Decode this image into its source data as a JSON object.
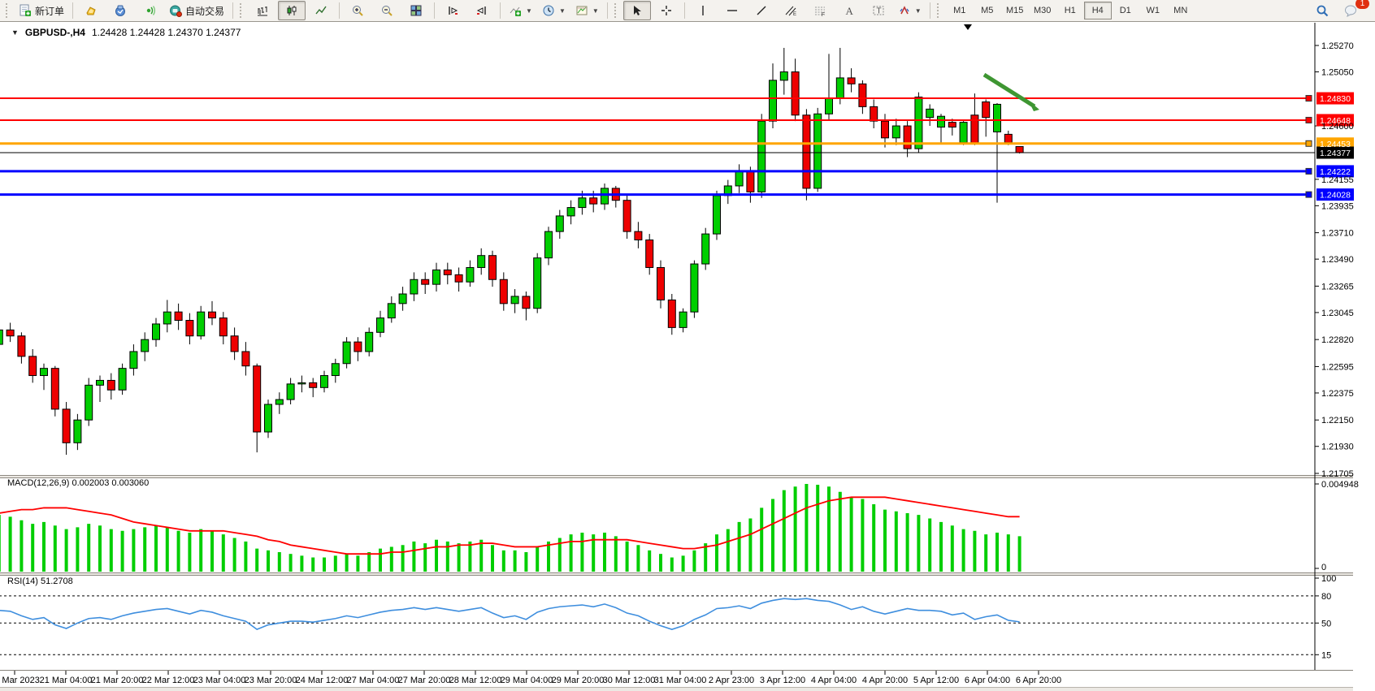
{
  "toolbar": {
    "new_order_label": "新订单",
    "autotrading_label": "自动交易",
    "timeframes": [
      "M1",
      "M5",
      "M15",
      "M30",
      "H1",
      "H4",
      "D1",
      "W1",
      "MN"
    ],
    "active_timeframe": "H4",
    "notification_count": "1"
  },
  "chart": {
    "symbol_period": "GBPUSD-,H4",
    "ohlc": "1.24428 1.24428 1.24370 1.24377",
    "dropdown_glyph": "▼"
  },
  "indicators": {
    "macd_label": "MACD(12,26,9) 0.002003 0.003060",
    "rsi_label": "RSI(14) 51.2708"
  },
  "axes": {
    "y_ticks": [
      "1.25270",
      "1.25050",
      "1.24600",
      "1.24155",
      "1.23935",
      "1.23710",
      "1.23490",
      "1.23265",
      "1.23045",
      "1.22820",
      "1.22595",
      "1.22375",
      "1.22150",
      "1.21930",
      "1.21705"
    ],
    "macd_ticks": [
      "0.004948",
      "0"
    ],
    "rsi_ticks": [
      "100",
      "80",
      "50",
      "15"
    ],
    "x_labels": [
      "20 Mar 2023",
      "21 Mar 04:00",
      "21 Mar 20:00",
      "22 Mar 12:00",
      "23 Mar 04:00",
      "23 Mar 20:00",
      "24 Mar 12:00",
      "27 Mar 04:00",
      "27 Mar 20:00",
      "28 Mar 12:00",
      "29 Mar 04:00",
      "29 Mar 20:00",
      "30 Mar 12:00",
      "31 Mar 04:00",
      "2 Apr 23:00",
      "3 Apr 12:00",
      "4 Apr 04:00",
      "4 Apr 20:00",
      "5 Apr 12:00",
      "6 Apr 04:00",
      "6 Apr 20:00"
    ]
  },
  "chart_data": {
    "type": "candlestick",
    "symbol": "GBPUSD-",
    "period": "H4",
    "y_range": [
      1.21705,
      1.2527
    ],
    "colors": {
      "bull": "#00CE00",
      "bear": "#EE0000",
      "wick": "#000000",
      "macd_hist": "#00CE00",
      "macd_signal": "#FF0000",
      "rsi_line": "#3E8EDE",
      "arrow": "#3E9632"
    },
    "levels": [
      {
        "label": "1.24830",
        "price": 1.2483,
        "color": "#FF0000",
        "width": 2
      },
      {
        "label": "1.24648",
        "price": 1.24648,
        "color": "#FF0000",
        "width": 2
      },
      {
        "label": "1.24453",
        "price": 1.24453,
        "color": "#FFA500",
        "width": 3
      },
      {
        "label": "1.24222",
        "price": 1.24222,
        "color": "#0000FF",
        "width": 3
      },
      {
        "label": "1.24028",
        "price": 1.24028,
        "color": "#0000FF",
        "width": 3
      }
    ],
    "current_price": {
      "label": "1.24377",
      "price": 1.24377
    },
    "candles": [
      [
        1.2295,
        1.23,
        1.2272,
        1.2278
      ],
      [
        1.2278,
        1.2294,
        1.2274,
        1.229
      ],
      [
        1.229,
        1.2296,
        1.228,
        1.2285
      ],
      [
        1.2285,
        1.2288,
        1.2262,
        1.2268
      ],
      [
        1.2268,
        1.2274,
        1.2246,
        1.2252
      ],
      [
        1.2252,
        1.2262,
        1.224,
        1.2258
      ],
      [
        1.2258,
        1.226,
        1.2218,
        1.2224
      ],
      [
        1.2224,
        1.223,
        1.2186,
        1.2196
      ],
      [
        1.2196,
        1.222,
        1.219,
        1.2215
      ],
      [
        1.2215,
        1.225,
        1.221,
        1.2244
      ],
      [
        1.2244,
        1.2252,
        1.223,
        1.2248
      ],
      [
        1.2248,
        1.2254,
        1.2232,
        1.224
      ],
      [
        1.224,
        1.2262,
        1.2236,
        1.2258
      ],
      [
        1.2258,
        1.2278,
        1.2252,
        1.2272
      ],
      [
        1.2272,
        1.2288,
        1.2264,
        1.2282
      ],
      [
        1.2282,
        1.23,
        1.2276,
        1.2295
      ],
      [
        1.2295,
        1.2315,
        1.2288,
        1.2305
      ],
      [
        1.2305,
        1.2312,
        1.229,
        1.2298
      ],
      [
        1.2298,
        1.2304,
        1.2278,
        1.2285
      ],
      [
        1.2285,
        1.231,
        1.2282,
        1.2305
      ],
      [
        1.2305,
        1.2314,
        1.2294,
        1.23
      ],
      [
        1.23,
        1.2305,
        1.2278,
        1.2285
      ],
      [
        1.2285,
        1.2292,
        1.2265,
        1.2272
      ],
      [
        1.2272,
        1.228,
        1.2252,
        1.226
      ],
      [
        1.226,
        1.2262,
        1.2188,
        1.2205
      ],
      [
        1.2205,
        1.2232,
        1.22,
        1.2228
      ],
      [
        1.2228,
        1.2238,
        1.222,
        1.2232
      ],
      [
        1.2232,
        1.225,
        1.2228,
        1.2245
      ],
      [
        1.2245,
        1.2252,
        1.2238,
        1.2246
      ],
      [
        1.2246,
        1.225,
        1.2234,
        1.2242
      ],
      [
        1.2242,
        1.2256,
        1.2238,
        1.2252
      ],
      [
        1.2252,
        1.2266,
        1.2246,
        1.2262
      ],
      [
        1.2262,
        1.2284,
        1.2258,
        1.228
      ],
      [
        1.228,
        1.2284,
        1.2264,
        1.2272
      ],
      [
        1.2272,
        1.2292,
        1.2268,
        1.2288
      ],
      [
        1.2288,
        1.2306,
        1.2284,
        1.23
      ],
      [
        1.23,
        1.2318,
        1.2296,
        1.2312
      ],
      [
        1.2312,
        1.2326,
        1.2306,
        1.232
      ],
      [
        1.232,
        1.2338,
        1.2314,
        1.2332
      ],
      [
        1.2332,
        1.2338,
        1.232,
        1.2328
      ],
      [
        1.2328,
        1.2346,
        1.2322,
        1.234
      ],
      [
        1.234,
        1.2346,
        1.2328,
        1.2336
      ],
      [
        1.2336,
        1.2342,
        1.2322,
        1.233
      ],
      [
        1.233,
        1.2348,
        1.2326,
        1.2342
      ],
      [
        1.2342,
        1.2358,
        1.2336,
        1.2352
      ],
      [
        1.2352,
        1.2356,
        1.2326,
        1.2332
      ],
      [
        1.2332,
        1.2338,
        1.2306,
        1.2312
      ],
      [
        1.2312,
        1.2324,
        1.2304,
        1.2318
      ],
      [
        1.2318,
        1.2322,
        1.2298,
        1.2308
      ],
      [
        1.2308,
        1.2354,
        1.2304,
        1.235
      ],
      [
        1.235,
        1.2376,
        1.2344,
        1.2372
      ],
      [
        1.2372,
        1.239,
        1.2366,
        1.2385
      ],
      [
        1.2385,
        1.2398,
        1.2378,
        1.2392
      ],
      [
        1.2392,
        1.2406,
        1.2386,
        1.24
      ],
      [
        1.24,
        1.2406,
        1.2388,
        1.2395
      ],
      [
        1.2395,
        1.2412,
        1.239,
        1.2408
      ],
      [
        1.2408,
        1.241,
        1.2392,
        1.2398
      ],
      [
        1.2398,
        1.2402,
        1.2366,
        1.2372
      ],
      [
        1.2372,
        1.238,
        1.2358,
        1.2365
      ],
      [
        1.2365,
        1.237,
        1.2336,
        1.2342
      ],
      [
        1.2342,
        1.2348,
        1.2308,
        1.2315
      ],
      [
        1.2315,
        1.232,
        1.2286,
        1.2292
      ],
      [
        1.2292,
        1.2308,
        1.2288,
        1.2305
      ],
      [
        1.2305,
        1.2348,
        1.23,
        1.2345
      ],
      [
        1.2345,
        1.2375,
        1.234,
        1.237
      ],
      [
        1.237,
        1.2406,
        1.2365,
        1.2402
      ],
      [
        1.2402,
        1.2415,
        1.2395,
        1.241
      ],
      [
        1.241,
        1.2428,
        1.2404,
        1.2422
      ],
      [
        1.2422,
        1.2426,
        1.2396,
        1.2405
      ],
      [
        1.2405,
        1.247,
        1.24,
        1.2464
      ],
      [
        1.2464,
        1.2512,
        1.2458,
        1.2498
      ],
      [
        1.2498,
        1.2525,
        1.2486,
        1.2505
      ],
      [
        1.2505,
        1.2516,
        1.2464,
        1.2469
      ],
      [
        1.2469,
        1.2474,
        1.2398,
        1.2408
      ],
      [
        1.2408,
        1.2475,
        1.2405,
        1.247
      ],
      [
        1.247,
        1.252,
        1.2465,
        1.2483
      ],
      [
        1.2483,
        1.2525,
        1.2478,
        1.25
      ],
      [
        1.25,
        1.2508,
        1.2488,
        1.2495
      ],
      [
        1.2495,
        1.2498,
        1.247,
        1.2476
      ],
      [
        1.2476,
        1.2482,
        1.2458,
        1.2464
      ],
      [
        1.2464,
        1.247,
        1.2442,
        1.245
      ],
      [
        1.245,
        1.2466,
        1.2444,
        1.246
      ],
      [
        1.246,
        1.2464,
        1.2434,
        1.2441
      ],
      [
        1.2441,
        1.2488,
        1.2438,
        1.2484
      ],
      [
        1.2467,
        1.2478,
        1.246,
        1.2474
      ],
      [
        1.2459,
        1.247,
        1.2445,
        1.2468
      ],
      [
        1.2463,
        1.2466,
        1.2452,
        1.2459
      ],
      [
        1.2446,
        1.2464,
        1.2444,
        1.2463
      ],
      [
        1.2469,
        1.2487,
        1.2444,
        1.2445
      ],
      [
        1.248,
        1.2482,
        1.2451,
        1.2467
      ],
      [
        1.2455,
        1.2479,
        1.2396,
        1.2478
      ],
      [
        1.2453,
        1.2456,
        1.2444,
        1.2446
      ],
      [
        1.24428,
        1.24428,
        1.2437,
        1.24377
      ]
    ],
    "macd": {
      "params": "12,26,9",
      "value": 0.002003,
      "signal_value": 0.00306,
      "max": 0.004948,
      "histogram": [
        0.003,
        0.0032,
        0.0031,
        0.0029,
        0.0027,
        0.0028,
        0.0026,
        0.0024,
        0.0025,
        0.0027,
        0.0026,
        0.0024,
        0.0023,
        0.0024,
        0.0025,
        0.0026,
        0.0025,
        0.0023,
        0.0022,
        0.0024,
        0.0023,
        0.0021,
        0.0019,
        0.0017,
        0.0013,
        0.0012,
        0.0011,
        0.001,
        0.0009,
        0.0008,
        0.0008,
        0.0009,
        0.001,
        0.0009,
        0.0011,
        0.0013,
        0.0014,
        0.0015,
        0.0017,
        0.0016,
        0.0018,
        0.0017,
        0.0016,
        0.0017,
        0.0018,
        0.0015,
        0.0012,
        0.0012,
        0.0011,
        0.0014,
        0.0017,
        0.0019,
        0.0021,
        0.0022,
        0.0021,
        0.0022,
        0.002,
        0.0017,
        0.0015,
        0.0012,
        0.001,
        0.0008,
        0.0009,
        0.0012,
        0.0016,
        0.0021,
        0.0024,
        0.0028,
        0.003,
        0.0036,
        0.0041,
        0.0046,
        0.0048,
        0.004948,
        0.0049,
        0.0048,
        0.0045,
        0.0042,
        0.0041,
        0.0038,
        0.0035,
        0.0034,
        0.0033,
        0.0032,
        0.003,
        0.0028,
        0.0026,
        0.0024,
        0.0023,
        0.0021,
        0.0022,
        0.0021,
        0.002
      ],
      "signal": [
        0.0031,
        0.0033,
        0.0034,
        0.0035,
        0.0035,
        0.0036,
        0.0036,
        0.0036,
        0.0035,
        0.0034,
        0.0033,
        0.0032,
        0.003,
        0.0028,
        0.0027,
        0.0026,
        0.0025,
        0.0024,
        0.0023,
        0.0023,
        0.0023,
        0.0023,
        0.0022,
        0.0021,
        0.002,
        0.0018,
        0.0017,
        0.0015,
        0.0014,
        0.0013,
        0.0012,
        0.0011,
        0.001,
        0.001,
        0.001,
        0.001,
        0.0011,
        0.0011,
        0.0012,
        0.0013,
        0.0014,
        0.0014,
        0.0015,
        0.0015,
        0.0016,
        0.0016,
        0.0015,
        0.0014,
        0.0014,
        0.0014,
        0.0015,
        0.0016,
        0.0017,
        0.0017,
        0.0018,
        0.0018,
        0.0018,
        0.0018,
        0.0017,
        0.0016,
        0.0015,
        0.0014,
        0.0013,
        0.0013,
        0.0014,
        0.0015,
        0.0017,
        0.0019,
        0.0021,
        0.0024,
        0.0027,
        0.003,
        0.0033,
        0.0036,
        0.0038,
        0.004,
        0.0041,
        0.0042,
        0.0042,
        0.0042,
        0.0042,
        0.0041,
        0.004,
        0.0039,
        0.0038,
        0.0037,
        0.0036,
        0.0035,
        0.0034,
        0.0033,
        0.0032,
        0.0031,
        0.0031
      ]
    },
    "rsi": {
      "period": 14,
      "last": 51.2708,
      "levels": [
        80,
        50,
        15
      ],
      "values": [
        62,
        64,
        63,
        58,
        54,
        56,
        48,
        44,
        50,
        55,
        56,
        54,
        58,
        61,
        63,
        65,
        66,
        63,
        60,
        64,
        62,
        58,
        55,
        52,
        43,
        48,
        50,
        52,
        52,
        51,
        53,
        55,
        58,
        56,
        59,
        62,
        64,
        65,
        67,
        65,
        67,
        65,
        63,
        65,
        67,
        61,
        56,
        58,
        54,
        62,
        66,
        68,
        69,
        70,
        68,
        71,
        67,
        61,
        58,
        52,
        47,
        43,
        47,
        54,
        59,
        66,
        67,
        69,
        66,
        72,
        75,
        77,
        76,
        77,
        75,
        74,
        70,
        65,
        68,
        63,
        60,
        63,
        66,
        64,
        64,
        63,
        59,
        61,
        54,
        57,
        59,
        53,
        51.27
      ]
    },
    "annotations": {
      "arrow": {
        "from": [
          1238,
          92
        ],
        "to": [
          1306,
          135
        ],
        "color": "#3E9632"
      }
    }
  }
}
